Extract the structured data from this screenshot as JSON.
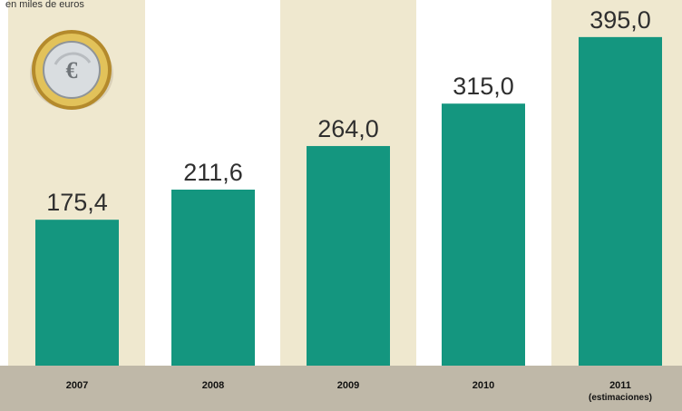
{
  "header": {
    "unit_text": "en miles de euros"
  },
  "colors": {
    "bar": "#14967f",
    "band": "#efe8cf",
    "axis_band": "#bfb8a8",
    "label_text": "#2f2f2f",
    "axis_text": "#111111"
  },
  "icon": {
    "name": "euro-coin-icon",
    "symbol": "€"
  },
  "chart_data": {
    "type": "bar",
    "categories": [
      "2007",
      "2008",
      "2009",
      "2010",
      "2011"
    ],
    "category_sublabels": [
      "",
      "",
      "",
      "",
      "(estimaciones)"
    ],
    "values": [
      175.4,
      211.6,
      264.0,
      315.0,
      395.0
    ],
    "value_labels": [
      "175,4",
      "211,6",
      "264,0",
      "315,0",
      "395,0"
    ],
    "title": "",
    "xlabel": "",
    "ylabel": "",
    "ylim": [
      0,
      400
    ],
    "grid": false,
    "legend": "none"
  }
}
